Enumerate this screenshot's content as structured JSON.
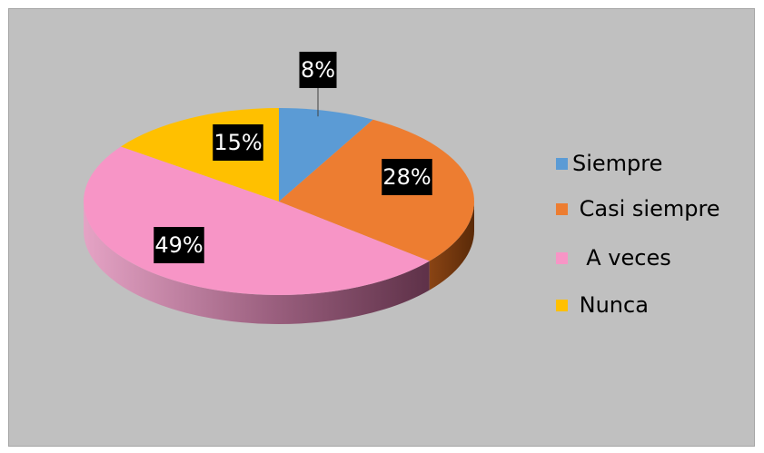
{
  "chart_data": {
    "type": "pie",
    "three_d": true,
    "title": "",
    "legend_position": "right",
    "slices": [
      {
        "label": "Siempre",
        "value": 8,
        "data_label": "8%",
        "color": "#5b9bd5"
      },
      {
        "label": " Casi siempre",
        "value": 28,
        "data_label": "28%",
        "color": "#ed7d31"
      },
      {
        "label": "  A veces",
        "value": 49,
        "data_label": "49%",
        "color": "#f795c6"
      },
      {
        "label": " Nunca",
        "value": 15,
        "data_label": "15%",
        "color": "#ffc000"
      }
    ],
    "background": "#c0c0c0"
  }
}
